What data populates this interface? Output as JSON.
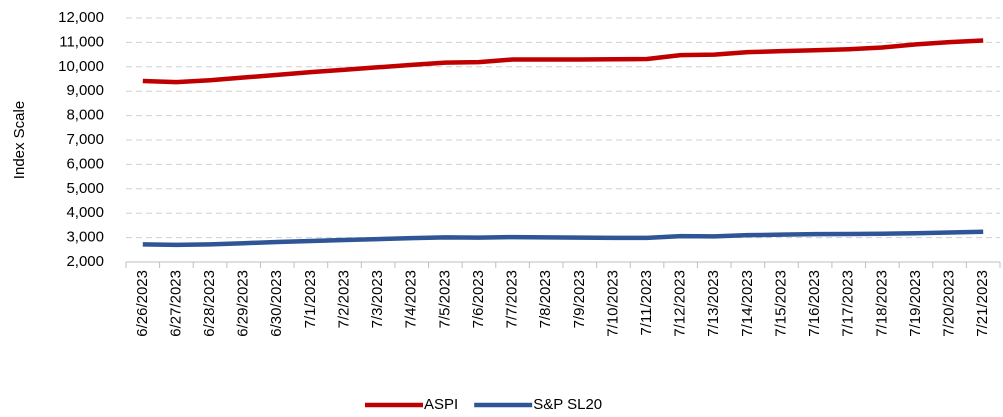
{
  "chart_data": {
    "type": "line",
    "y_label": "Index Scale",
    "categories": [
      "6/26/2023",
      "6/27/2023",
      "6/28/2023",
      "6/29/2023",
      "6/30/2023",
      "7/1/2023",
      "7/2/2023",
      "7/3/2023",
      "7/4/2023",
      "7/5/2023",
      "7/6/2023",
      "7/7/2023",
      "7/8/2023",
      "7/9/2023",
      "7/10/2023",
      "7/11/2023",
      "7/12/2023",
      "7/13/2023",
      "7/14/2023",
      "7/15/2023",
      "7/16/2023",
      "7/17/2023",
      "7/18/2023",
      "7/19/2023",
      "7/20/2023",
      "7/21/2023"
    ],
    "series": [
      {
        "name": "ASPI",
        "color": "#c00000",
        "values": [
          9420,
          9370,
          9450,
          9560,
          9670,
          9780,
          9880,
          9980,
          10080,
          10170,
          10190,
          10300,
          10300,
          10300,
          10310,
          10320,
          10480,
          10500,
          10600,
          10640,
          10680,
          10720,
          10790,
          10920,
          11010,
          11080
        ]
      },
      {
        "name": "S&P SL20",
        "color": "#2f5597",
        "values": [
          2720,
          2700,
          2720,
          2770,
          2820,
          2860,
          2900,
          2940,
          2980,
          3010,
          3000,
          3020,
          3010,
          3000,
          2990,
          2990,
          3060,
          3050,
          3100,
          3120,
          3140,
          3150,
          3160,
          3180,
          3210,
          3240
        ]
      }
    ],
    "ylim": [
      2000,
      12000
    ],
    "yticks": [
      {
        "value": 2000,
        "label": "2,000"
      },
      {
        "value": 3000,
        "label": "3,000"
      },
      {
        "value": 4000,
        "label": "4,000"
      },
      {
        "value": 5000,
        "label": "5,000"
      },
      {
        "value": 6000,
        "label": "6,000"
      },
      {
        "value": 7000,
        "label": "7,000"
      },
      {
        "value": 8000,
        "label": "8,000"
      },
      {
        "value": 9000,
        "label": "9,000"
      },
      {
        "value": 10000,
        "label": "10,000"
      },
      {
        "value": 11000,
        "label": "11,000"
      },
      {
        "value": 12000,
        "label": "12,000"
      }
    ],
    "grid": true,
    "legend": "bottom"
  }
}
